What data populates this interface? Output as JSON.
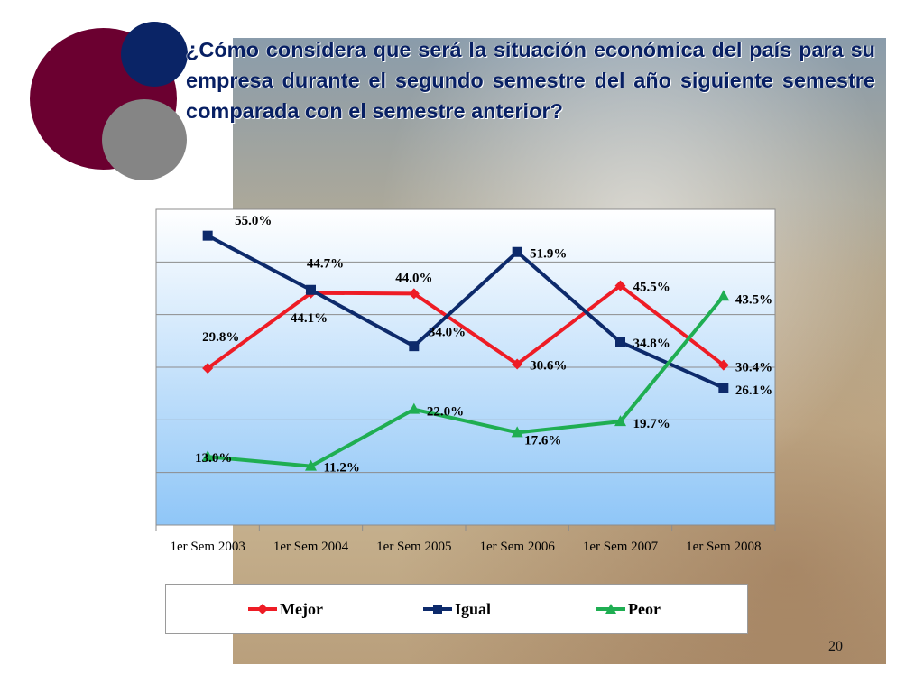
{
  "slide": {
    "title": "¿Cómo considera que será la situación económica del país para su empresa durante el segundo semestre del año siguiente semestre comparada con el semestre anterior?",
    "page_number": "20"
  },
  "colors": {
    "title_text": "#071f63",
    "circle_maroon": "#6b0030",
    "circle_navy": "#0a2466",
    "circle_gray": "#858585"
  },
  "chart_data": {
    "type": "line",
    "categories": [
      "1er Sem 2003",
      "1er Sem 2004",
      "1er Sem 2005",
      "1er Sem 2006",
      "1er Sem 2007",
      "1er Sem 2008"
    ],
    "ylim": [
      0,
      60
    ],
    "grid": true,
    "legend_position": "bottom",
    "series": [
      {
        "name": "Mejor",
        "color": "#ee1c25",
        "marker": "diamond",
        "values": [
          29.8,
          44.1,
          44.0,
          30.6,
          45.5,
          30.4
        ],
        "labels": [
          "29.8%",
          "44.1%",
          "44.0%",
          "30.6%",
          "45.5%",
          "30.4%"
        ]
      },
      {
        "name": "Igual",
        "color": "#0d2a6b",
        "marker": "square",
        "values": [
          55.0,
          44.7,
          34.0,
          51.9,
          34.8,
          26.1
        ],
        "labels": [
          "55.0%",
          "44.7%",
          "34.0%",
          "51.9%",
          "34.8%",
          "26.1%"
        ]
      },
      {
        "name": "Peor",
        "color": "#1fae52",
        "marker": "triangle",
        "values": [
          13.0,
          11.2,
          22.0,
          17.6,
          19.7,
          43.5
        ],
        "labels": [
          "13.0%",
          "11.2%",
          "22.0%",
          "17.6%",
          "19.7%",
          "43.5%"
        ]
      }
    ]
  }
}
